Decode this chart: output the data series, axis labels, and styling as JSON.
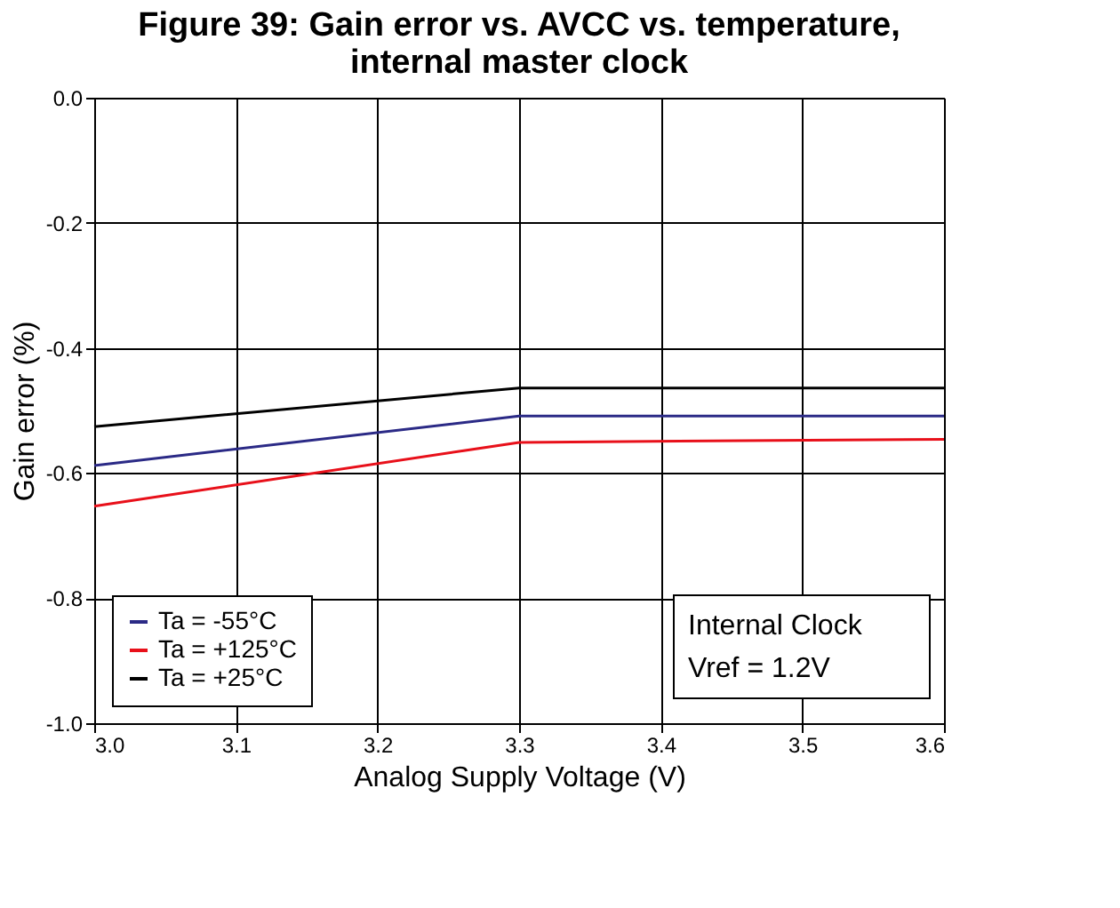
{
  "chart_data": {
    "type": "line",
    "title": [
      "Figure 39: Gain error vs. AVCC vs. temperature,",
      "internal master clock"
    ],
    "xlabel": "Analog Supply Voltage (V)",
    "ylabel": "Gain error (%)",
    "x": [
      3.0,
      3.3,
      3.6
    ],
    "series": [
      {
        "name": "Ta = -55°C",
        "color": "#2b2a86",
        "values": [
          -0.588,
          -0.509,
          -0.509
        ]
      },
      {
        "name": "Ta = +125°C",
        "color": "#e8101a",
        "values": [
          -0.653,
          -0.551,
          -0.546
        ]
      },
      {
        "name": "Ta = +25°C",
        "color": "#000000",
        "values": [
          -0.526,
          -0.464,
          -0.464
        ]
      }
    ],
    "xlim": [
      3.0,
      3.6
    ],
    "xticks": [
      {
        "value": 3.0,
        "label": "3.0"
      },
      3.1,
      3.2,
      3.3,
      3.4,
      3.5,
      {
        "value": 3.6,
        "label": "3.6"
      }
    ],
    "ylim": [
      -1.0,
      0.0
    ],
    "yticks": [
      {
        "value": -1.0,
        "label": "-1.0"
      },
      -0.8,
      -0.6,
      -0.4,
      -0.2,
      {
        "value": 0.0,
        "label": "0.0"
      }
    ],
    "grid": true,
    "legend": "bottom left",
    "marker": "none",
    "line_style": "solid",
    "annotations": [
      "Internal Clock",
      "Vref = 1.2V"
    ]
  }
}
